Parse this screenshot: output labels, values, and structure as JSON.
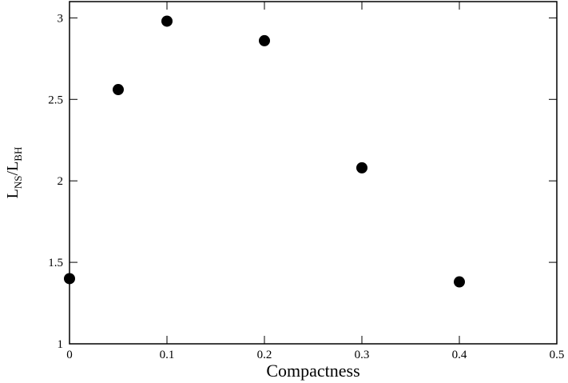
{
  "chart_data": {
    "type": "scatter",
    "xlabel": "Compactness",
    "ylabel_parts": [
      "L",
      "NS",
      "/L",
      "BH"
    ],
    "x": [
      0,
      0.05,
      0.1,
      0.2,
      0.3,
      0.4
    ],
    "series": [
      {
        "color": "#000000",
        "values": [
          1.4,
          2.56,
          2.98,
          2.86,
          2.08,
          1.38
        ]
      }
    ],
    "xlim": [
      0,
      0.5
    ],
    "xticks": [
      0,
      0.1,
      0.2,
      0.3,
      0.4,
      0.5
    ],
    "ylim": [
      1,
      3.1
    ],
    "yticks": [
      1,
      1.5,
      2,
      2.5,
      3
    ],
    "grid": false
  }
}
